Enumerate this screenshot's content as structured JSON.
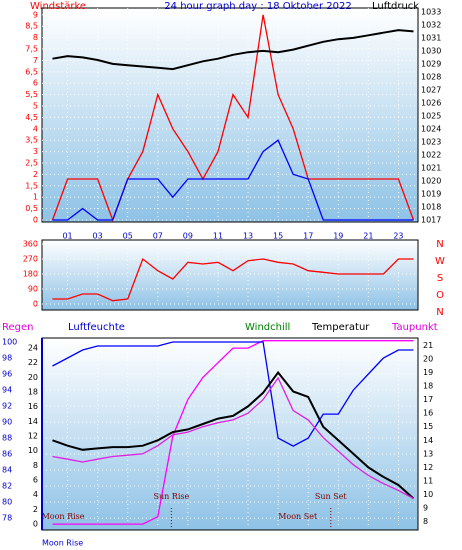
{
  "chart_data": [
    {
      "type": "line",
      "title": "24 hour graph day : 18 Oktober 2022",
      "x": [
        0,
        1,
        2,
        3,
        4,
        5,
        6,
        7,
        8,
        9,
        10,
        11,
        12,
        13,
        14,
        15,
        16,
        17,
        18,
        19,
        20,
        21,
        22,
        23,
        24
      ],
      "xlim": [
        -0.7,
        24.3
      ],
      "xticks": [
        {
          "value": 1,
          "label": "01"
        },
        {
          "value": 3,
          "label": "03"
        },
        {
          "value": 5,
          "label": "05"
        },
        {
          "value": 7,
          "label": "07"
        },
        {
          "value": 9,
          "label": "09"
        },
        11,
        13,
        15,
        17,
        19,
        21,
        23
      ],
      "ylim": [
        0,
        9.3
      ],
      "yticks": [
        0,
        {
          "value": 0.5,
          "label": "0,5"
        },
        1,
        {
          "value": 1.5,
          "label": "1,5"
        },
        2,
        {
          "value": 2.5,
          "label": "2,5"
        },
        3,
        {
          "value": 3.5,
          "label": "3,5"
        },
        4,
        {
          "value": 4.5,
          "label": "4,5"
        },
        5,
        {
          "value": 5.5,
          "label": "5,5"
        },
        6,
        {
          "value": 6.5,
          "label": "6,5"
        },
        7,
        {
          "value": 7.5,
          "label": "7,5"
        },
        8,
        {
          "value": 8.5,
          "label": "8,5"
        },
        9
      ],
      "y2lim": [
        1017,
        1033.3
      ],
      "y2ticks": [
        1017,
        1018,
        1019,
        1020,
        1021,
        1022,
        1023,
        1024,
        1025,
        1026,
        1027,
        1028,
        1029,
        1030,
        1031,
        1032,
        1033
      ],
      "grid": true,
      "series": [
        {
          "name": "Windstärke",
          "color": "#ff0000",
          "values": [
            0,
            1.8,
            1.8,
            1.8,
            0,
            1.8,
            3,
            5.5,
            4,
            3,
            1.8,
            3,
            5.5,
            4.5,
            9,
            5.5,
            4,
            1.8,
            1.8,
            1.8,
            1.8,
            1.8,
            1.8,
            1.8,
            0
          ]
        },
        {
          "color": "#0000ff",
          "values": [
            0,
            0,
            0.5,
            0,
            0,
            1.8,
            1.8,
            1.8,
            1,
            1.8,
            1.8,
            1.8,
            1.8,
            1.8,
            3,
            3.5,
            2,
            1.8,
            0,
            0,
            0,
            0,
            0,
            0,
            0
          ]
        },
        {
          "name": "Luftdruck",
          "color": "#000000",
          "axis": "y2",
          "values": [
            1029.4,
            1029.6,
            1029.5,
            1029.3,
            1029.0,
            1028.9,
            1028.8,
            1028.7,
            1028.6,
            1028.9,
            1029.2,
            1029.4,
            1029.7,
            1029.9,
            1030.0,
            1029.9,
            1030.1,
            1030.4,
            1030.7,
            1030.9,
            1031.0,
            1031.2,
            1031.4,
            1031.6,
            1031.5
          ]
        }
      ]
    },
    {
      "type": "line",
      "x": [
        0,
        1,
        2,
        3,
        4,
        5,
        6,
        7,
        8,
        9,
        10,
        11,
        12,
        13,
        14,
        15,
        16,
        17,
        18,
        19,
        20,
        21,
        22,
        23,
        24
      ],
      "xlim": [
        -0.7,
        24.3
      ],
      "ylim": [
        0,
        360
      ],
      "yticks": [
        0,
        90,
        180,
        270,
        360
      ],
      "direction_labels": [
        "N",
        "W",
        "S",
        "O",
        "N"
      ],
      "grid": true,
      "series": [
        {
          "color": "#ff0000",
          "values": [
            30,
            30,
            60,
            60,
            20,
            30,
            270,
            200,
            150,
            250,
            240,
            250,
            200,
            260,
            270,
            250,
            240,
            200,
            190,
            180,
            180,
            180,
            180,
            270,
            270
          ]
        }
      ]
    },
    {
      "type": "line",
      "x": [
        0,
        1,
        2,
        3,
        4,
        5,
        6,
        7,
        8,
        9,
        10,
        11,
        12,
        13,
        14,
        15,
        16,
        17,
        18,
        19,
        20,
        21,
        22,
        23,
        24
      ],
      "xlim": [
        -0.7,
        24.3
      ],
      "ylim": [
        76.9,
        100.25
      ],
      "yticks": [
        78,
        80,
        82,
        84,
        86,
        88,
        90,
        92,
        94,
        96,
        98,
        100
      ],
      "y2lim": [
        7.6,
        21.4
      ],
      "y2ticks": [
        8,
        9,
        10,
        11,
        12,
        13,
        14,
        15,
        16,
        17,
        18,
        19,
        20,
        21
      ],
      "y3lim": [
        -0.4,
        25.1
      ],
      "y3ticks": [
        0,
        2,
        4,
        6,
        8,
        10,
        12,
        14,
        16,
        18,
        20,
        22,
        24
      ],
      "grid": true,
      "windchill_label": "Windchill",
      "series": [
        {
          "name": "Regen",
          "color": "#ff00ff",
          "axis": "y3",
          "values": [
            0,
            0,
            0,
            0,
            0,
            0,
            0,
            1,
            12,
            17,
            20,
            22,
            24,
            24,
            25,
            25,
            25,
            25,
            25,
            25,
            25,
            25,
            25,
            25,
            25
          ]
        },
        {
          "name": "Luftfeuchte",
          "color": "#0000ff",
          "values": [
            97,
            98,
            99,
            99.5,
            99.5,
            99.5,
            99.5,
            99.5,
            100,
            100,
            100,
            100,
            100,
            100,
            100,
            88,
            87,
            88,
            91,
            91,
            94,
            96,
            98,
            99,
            99
          ]
        },
        {
          "name": "Temperatur",
          "color": "#000000",
          "axis": "y2",
          "values": [
            14,
            13.6,
            13.3,
            13.4,
            13.5,
            13.5,
            13.6,
            14,
            14.6,
            14.8,
            15.2,
            15.6,
            15.8,
            16.5,
            17.5,
            19,
            17.6,
            17.2,
            15,
            14,
            13,
            12,
            11.3,
            10.7,
            9.7
          ]
        },
        {
          "name": "Taupunkt",
          "color": "#e020e0",
          "axis": "y2",
          "values": [
            12.8,
            12.6,
            12.4,
            12.6,
            12.8,
            12.9,
            13,
            13.6,
            14.4,
            14.6,
            15,
            15.3,
            15.5,
            16,
            17,
            18.6,
            16.2,
            15.5,
            14.2,
            13.2,
            12.2,
            11.4,
            10.8,
            10.3,
            9.7
          ]
        }
      ],
      "annotations": [
        {
          "text": "Moon Rise",
          "x": 0.7
        },
        {
          "text": "Sun Rise",
          "x": 7.9,
          "line": true
        },
        {
          "text": "Moon Set",
          "x": 16.3
        },
        {
          "text": "Sun Set",
          "x": 18.5,
          "line": true
        }
      ],
      "footer": "Moon Rise"
    }
  ]
}
